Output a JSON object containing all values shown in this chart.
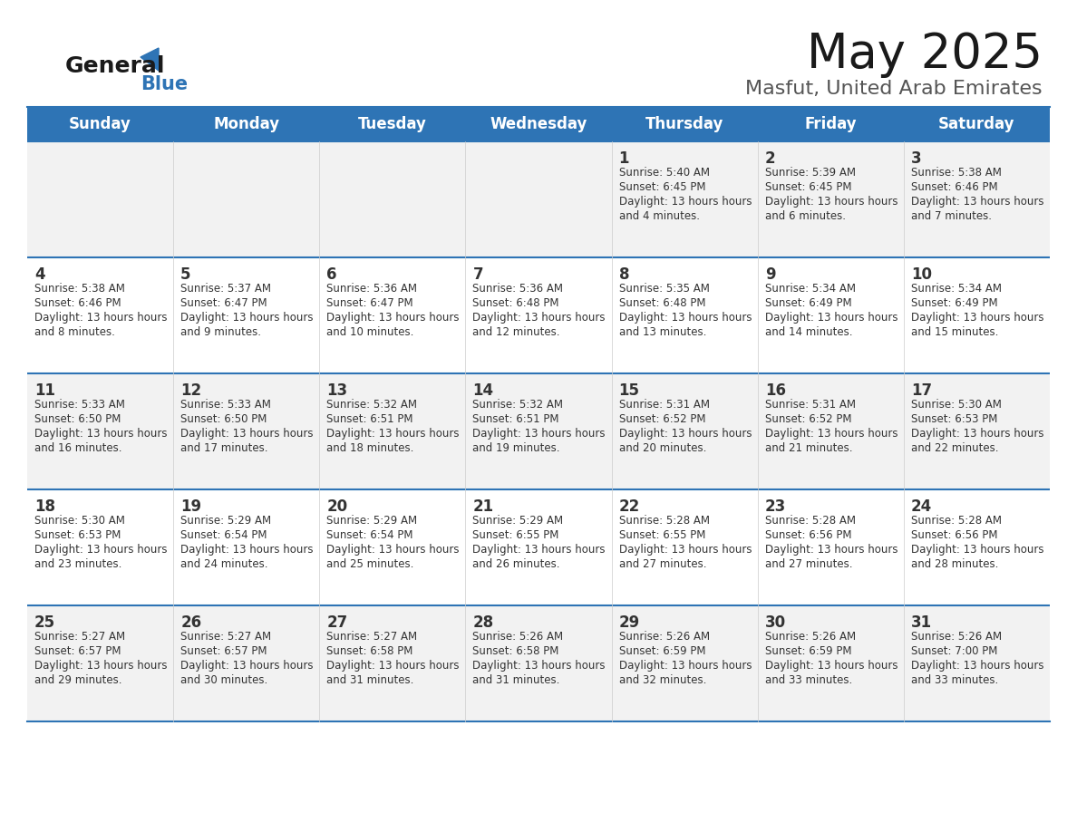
{
  "title": "May 2025",
  "subtitle": "Masfut, United Arab Emirates",
  "header_bg": "#2E74B5",
  "header_text_color": "#FFFFFF",
  "day_names": [
    "Sunday",
    "Monday",
    "Tuesday",
    "Wednesday",
    "Thursday",
    "Friday",
    "Saturday"
  ],
  "row_bg_odd": "#F2F2F2",
  "row_bg_even": "#FFFFFF",
  "cell_text_color": "#333333",
  "day_number_color": "#333333",
  "separator_color": "#2E74B5",
  "logo_general_color": "#1A1A1A",
  "logo_blue_color": "#2E74B5",
  "calendar_data": [
    [
      null,
      null,
      null,
      null,
      {
        "day": 1,
        "sunrise": "5:40 AM",
        "sunset": "6:45 PM",
        "daylight": "13 hours and 4 minutes."
      },
      {
        "day": 2,
        "sunrise": "5:39 AM",
        "sunset": "6:45 PM",
        "daylight": "13 hours and 6 minutes."
      },
      {
        "day": 3,
        "sunrise": "5:38 AM",
        "sunset": "6:46 PM",
        "daylight": "13 hours and 7 minutes."
      }
    ],
    [
      {
        "day": 4,
        "sunrise": "5:38 AM",
        "sunset": "6:46 PM",
        "daylight": "13 hours and 8 minutes."
      },
      {
        "day": 5,
        "sunrise": "5:37 AM",
        "sunset": "6:47 PM",
        "daylight": "13 hours and 9 minutes."
      },
      {
        "day": 6,
        "sunrise": "5:36 AM",
        "sunset": "6:47 PM",
        "daylight": "13 hours and 10 minutes."
      },
      {
        "day": 7,
        "sunrise": "5:36 AM",
        "sunset": "6:48 PM",
        "daylight": "13 hours and 12 minutes."
      },
      {
        "day": 8,
        "sunrise": "5:35 AM",
        "sunset": "6:48 PM",
        "daylight": "13 hours and 13 minutes."
      },
      {
        "day": 9,
        "sunrise": "5:34 AM",
        "sunset": "6:49 PM",
        "daylight": "13 hours and 14 minutes."
      },
      {
        "day": 10,
        "sunrise": "5:34 AM",
        "sunset": "6:49 PM",
        "daylight": "13 hours and 15 minutes."
      }
    ],
    [
      {
        "day": 11,
        "sunrise": "5:33 AM",
        "sunset": "6:50 PM",
        "daylight": "13 hours and 16 minutes."
      },
      {
        "day": 12,
        "sunrise": "5:33 AM",
        "sunset": "6:50 PM",
        "daylight": "13 hours and 17 minutes."
      },
      {
        "day": 13,
        "sunrise": "5:32 AM",
        "sunset": "6:51 PM",
        "daylight": "13 hours and 18 minutes."
      },
      {
        "day": 14,
        "sunrise": "5:32 AM",
        "sunset": "6:51 PM",
        "daylight": "13 hours and 19 minutes."
      },
      {
        "day": 15,
        "sunrise": "5:31 AM",
        "sunset": "6:52 PM",
        "daylight": "13 hours and 20 minutes."
      },
      {
        "day": 16,
        "sunrise": "5:31 AM",
        "sunset": "6:52 PM",
        "daylight": "13 hours and 21 minutes."
      },
      {
        "day": 17,
        "sunrise": "5:30 AM",
        "sunset": "6:53 PM",
        "daylight": "13 hours and 22 minutes."
      }
    ],
    [
      {
        "day": 18,
        "sunrise": "5:30 AM",
        "sunset": "6:53 PM",
        "daylight": "13 hours and 23 minutes."
      },
      {
        "day": 19,
        "sunrise": "5:29 AM",
        "sunset": "6:54 PM",
        "daylight": "13 hours and 24 minutes."
      },
      {
        "day": 20,
        "sunrise": "5:29 AM",
        "sunset": "6:54 PM",
        "daylight": "13 hours and 25 minutes."
      },
      {
        "day": 21,
        "sunrise": "5:29 AM",
        "sunset": "6:55 PM",
        "daylight": "13 hours and 26 minutes."
      },
      {
        "day": 22,
        "sunrise": "5:28 AM",
        "sunset": "6:55 PM",
        "daylight": "13 hours and 27 minutes."
      },
      {
        "day": 23,
        "sunrise": "5:28 AM",
        "sunset": "6:56 PM",
        "daylight": "13 hours and 27 minutes."
      },
      {
        "day": 24,
        "sunrise": "5:28 AM",
        "sunset": "6:56 PM",
        "daylight": "13 hours and 28 minutes."
      }
    ],
    [
      {
        "day": 25,
        "sunrise": "5:27 AM",
        "sunset": "6:57 PM",
        "daylight": "13 hours and 29 minutes."
      },
      {
        "day": 26,
        "sunrise": "5:27 AM",
        "sunset": "6:57 PM",
        "daylight": "13 hours and 30 minutes."
      },
      {
        "day": 27,
        "sunrise": "5:27 AM",
        "sunset": "6:58 PM",
        "daylight": "13 hours and 31 minutes."
      },
      {
        "day": 28,
        "sunrise": "5:26 AM",
        "sunset": "6:58 PM",
        "daylight": "13 hours and 31 minutes."
      },
      {
        "day": 29,
        "sunrise": "5:26 AM",
        "sunset": "6:59 PM",
        "daylight": "13 hours and 32 minutes."
      },
      {
        "day": 30,
        "sunrise": "5:26 AM",
        "sunset": "6:59 PM",
        "daylight": "13 hours and 33 minutes."
      },
      {
        "day": 31,
        "sunrise": "5:26 AM",
        "sunset": "7:00 PM",
        "daylight": "13 hours and 33 minutes."
      }
    ]
  ]
}
